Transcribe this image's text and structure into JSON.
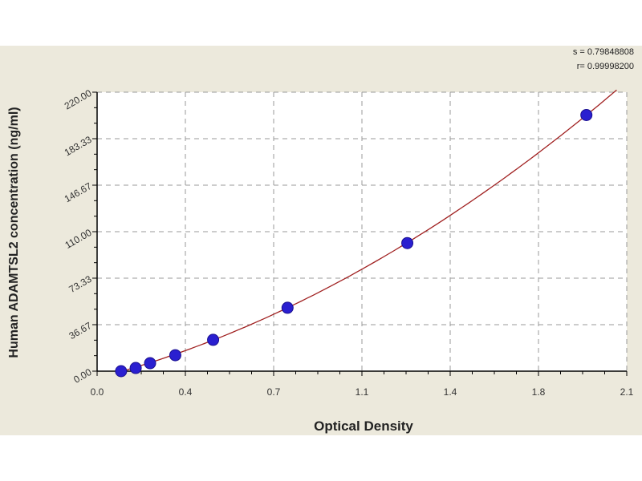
{
  "chart_data": {
    "type": "scatter",
    "xlabel": "Optical Density",
    "ylabel": "Human ADAMTSL2 concentration (ng/ml)",
    "xlim": [
      0.0,
      2.1
    ],
    "ylim": [
      0.0,
      220.0
    ],
    "x_ticks": [
      0.0,
      0.35,
      0.7,
      1.05,
      1.4,
      1.75,
      2.1
    ],
    "x_tick_labels": [
      "0.0",
      "0.4",
      "0.7",
      "1.1",
      "1.4",
      "1.8",
      "2.1"
    ],
    "y_ticks": [
      0,
      36.67,
      73.33,
      110,
      146.67,
      183.33,
      220
    ],
    "y_tick_labels": [
      "0.00",
      "36.67",
      "73.33",
      "110.00",
      "146.67",
      "183.33",
      "220.00"
    ],
    "grid": true,
    "points": {
      "x": [
        0.095,
        0.153,
        0.21,
        0.31,
        0.46,
        0.755,
        1.23,
        1.94
      ],
      "y": [
        0,
        2.5,
        6.3,
        12.6,
        24.7,
        50,
        101,
        202
      ]
    },
    "fit": {
      "type": "polynomial",
      "coefficients": [
        28.2,
        52.2,
        -5.5
      ],
      "x_range": [
        0.095,
        2.06
      ]
    },
    "stats": [
      "s = 0.79848808",
      "r= 0.99998200"
    ],
    "colors": {
      "points": "#2a1fd0",
      "curve": "#a02020",
      "background": "#ece9dc",
      "plot_area": "#ffffff"
    }
  }
}
